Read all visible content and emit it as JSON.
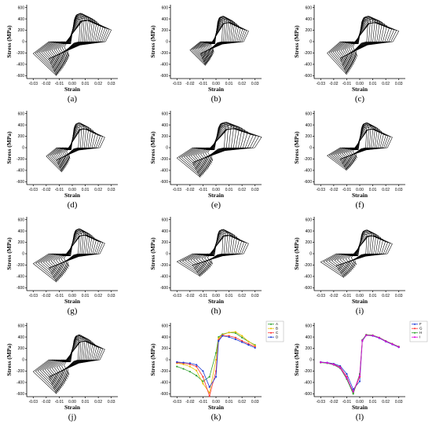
{
  "chart_data": [
    {
      "id": "a",
      "type": "line",
      "caption": "(a)",
      "xlabel": "Strain",
      "ylabel": "Stress (MPa)",
      "xlim": [
        -0.035,
        0.035
      ],
      "ylim": [
        -650,
        650
      ],
      "yticks": [
        "600",
        "400",
        "200",
        "0",
        "-200",
        "-400",
        "-600"
      ],
      "xticks": [
        "-0.03",
        "-0.02",
        "-0.01",
        "0.00",
        "0.01",
        "0.02",
        "0.03"
      ],
      "envelope": {
        "peak_pos": 500,
        "peak_neg": -600,
        "strain_min": -0.03,
        "strain_max": 0.03,
        "cycles": 16
      }
    },
    {
      "id": "b",
      "type": "line",
      "caption": "(b)",
      "xlabel": "Strain",
      "ylabel": "Stress (MPa)",
      "xlim": [
        -0.035,
        0.035
      ],
      "ylim": [
        -650,
        650
      ],
      "yticks": [
        "600",
        "400",
        "200",
        "0",
        "-200",
        "-400",
        "-600"
      ],
      "xticks": [
        "-0.03",
        "-0.02",
        "-0.01",
        "0.00",
        "0.01",
        "0.02",
        "0.03"
      ],
      "envelope": {
        "peak_pos": 450,
        "peak_neg": -420,
        "strain_min": -0.02,
        "strain_max": 0.025,
        "cycles": 14
      }
    },
    {
      "id": "c",
      "type": "line",
      "caption": "(c)",
      "xlabel": "Strain",
      "ylabel": "Stress (MPa)",
      "xlim": [
        -0.035,
        0.035
      ],
      "ylim": [
        -650,
        650
      ],
      "yticks": [
        "600",
        "400",
        "200",
        "0",
        "-200",
        "-400",
        "-600"
      ],
      "xticks": [
        "-0.03",
        "-0.02",
        "-0.01",
        "0.00",
        "0.01",
        "0.02",
        "0.03"
      ],
      "envelope": {
        "peak_pos": 450,
        "peak_neg": -580,
        "strain_min": -0.025,
        "strain_max": 0.03,
        "cycles": 14
      }
    },
    {
      "id": "d",
      "type": "line",
      "caption": "(d)",
      "xlabel": "Strain",
      "ylabel": "Stress (MPa)",
      "xlim": [
        -0.035,
        0.035
      ],
      "ylim": [
        -650,
        650
      ],
      "yticks": [
        "600",
        "400",
        "200",
        "0",
        "-200",
        "-400",
        "-600"
      ],
      "xticks": [
        "-0.03",
        "-0.02",
        "-0.01",
        "0.00",
        "0.01",
        "0.02",
        "0.03"
      ],
      "envelope": {
        "peak_pos": 440,
        "peak_neg": -430,
        "strain_min": -0.02,
        "strain_max": 0.025,
        "cycles": 12
      }
    },
    {
      "id": "e",
      "type": "line",
      "caption": "(e)",
      "xlabel": "Strain",
      "ylabel": "Stress (MPa)",
      "xlim": [
        -0.035,
        0.035
      ],
      "ylim": [
        -650,
        650
      ],
      "yticks": [
        "600",
        "400",
        "200",
        "0",
        "-200",
        "-400",
        "-600"
      ],
      "xticks": [
        "-0.03",
        "-0.02",
        "-0.01",
        "0.00",
        "0.01",
        "0.02",
        "0.03"
      ],
      "envelope": {
        "peak_pos": 450,
        "peak_neg": -520,
        "strain_min": -0.03,
        "strain_max": 0.035,
        "cycles": 14
      }
    },
    {
      "id": "f",
      "type": "line",
      "caption": "(f)",
      "xlabel": "Strain",
      "ylabel": "Stress (MPa)",
      "xlim": [
        -0.035,
        0.035
      ],
      "ylim": [
        -650,
        650
      ],
      "yticks": [
        "600",
        "400",
        "200",
        "0",
        "-200",
        "-400",
        "-600"
      ],
      "xticks": [
        "-0.03",
        "-0.02",
        "-0.01",
        "0.00",
        "0.01",
        "0.02",
        "0.03"
      ],
      "envelope": {
        "peak_pos": 440,
        "peak_neg": -400,
        "strain_min": -0.025,
        "strain_max": 0.025,
        "cycles": 13
      }
    },
    {
      "id": "g",
      "type": "line",
      "caption": "(g)",
      "xlabel": "Strain",
      "ylabel": "Stress (MPa)",
      "xlim": [
        -0.035,
        0.035
      ],
      "ylim": [
        -650,
        650
      ],
      "yticks": [
        "600",
        "400",
        "200",
        "0",
        "-200",
        "-400",
        "-600"
      ],
      "xticks": [
        "-0.03",
        "-0.02",
        "-0.01",
        "0.00",
        "0.01",
        "0.02",
        "0.03"
      ],
      "envelope": {
        "peak_pos": 440,
        "peak_neg": -500,
        "strain_min": -0.03,
        "strain_max": 0.025,
        "cycles": 13
      }
    },
    {
      "id": "h",
      "type": "line",
      "caption": "(h)",
      "xlabel": "Strain",
      "ylabel": "Stress (MPa)",
      "xlim": [
        -0.035,
        0.035
      ],
      "ylim": [
        -650,
        650
      ],
      "yticks": [
        "600",
        "400",
        "200",
        "0",
        "-200",
        "-400",
        "-600"
      ],
      "xticks": [
        "-0.03",
        "-0.02",
        "-0.01",
        "0.00",
        "0.01",
        "0.02",
        "0.03"
      ],
      "envelope": {
        "peak_pos": 430,
        "peak_neg": -400,
        "strain_min": -0.03,
        "strain_max": 0.025,
        "cycles": 12
      }
    },
    {
      "id": "i",
      "type": "line",
      "caption": "(i)",
      "xlabel": "Strain",
      "ylabel": "Stress (MPa)",
      "xlim": [
        -0.035,
        0.035
      ],
      "ylim": [
        -650,
        650
      ],
      "yticks": [
        "600",
        "400",
        "200",
        "0",
        "-200",
        "-400",
        "-600"
      ],
      "xticks": [
        "-0.03",
        "-0.02",
        "-0.01",
        "0.00",
        "0.01",
        "0.02",
        "0.03"
      ],
      "envelope": {
        "peak_pos": 420,
        "peak_neg": -420,
        "strain_min": -0.03,
        "strain_max": 0.025,
        "cycles": 12
      }
    },
    {
      "id": "j",
      "type": "line",
      "caption": "(j)",
      "xlabel": "Strain",
      "ylabel": "Stress (MPa)",
      "xlim": [
        -0.035,
        0.035
      ],
      "ylim": [
        -650,
        650
      ],
      "yticks": [
        "600",
        "400",
        "200",
        "0",
        "-200",
        "-400",
        "-600"
      ],
      "xticks": [
        "-0.03",
        "-0.02",
        "-0.01",
        "0.00",
        "0.01",
        "0.02",
        "0.03"
      ],
      "envelope": {
        "peak_pos": 440,
        "peak_neg": -600,
        "strain_min": -0.03,
        "strain_max": 0.025,
        "cycles": 14
      }
    },
    {
      "id": "k",
      "type": "line",
      "caption": "(k)",
      "xlabel": "Strain",
      "ylabel": "Stress (MPa)",
      "xlim": [
        -0.035,
        0.035
      ],
      "ylim": [
        -650,
        650
      ],
      "yticks": [
        "600",
        "400",
        "200",
        "0",
        "-200",
        "-400",
        "-600"
      ],
      "xticks": [
        "-0.03",
        "-0.02",
        "-0.01",
        "0.00",
        "0.01",
        "0.02",
        "0.03"
      ],
      "legend_position": "top-right",
      "series": [
        {
          "name": "A",
          "color": "#2ca02c",
          "x": [
            -0.03,
            -0.025,
            -0.02,
            -0.015,
            -0.01,
            -0.005,
            0.0,
            0.002,
            0.005,
            0.01,
            0.015,
            0.02,
            0.025,
            0.03
          ],
          "values": [
            -120,
            -160,
            -210,
            -280,
            -380,
            -300,
            120,
            400,
            450,
            480,
            470,
            390,
            320,
            260
          ]
        },
        {
          "name": "B",
          "color": "#e8c000",
          "x": [
            -0.03,
            -0.025,
            -0.02,
            -0.015,
            -0.01,
            -0.005,
            0.0,
            0.002,
            0.005,
            0.01,
            0.015,
            0.02,
            0.025,
            0.03
          ],
          "values": [
            -60,
            -80,
            -120,
            -190,
            -420,
            -580,
            0,
            380,
            440,
            480,
            490,
            420,
            320,
            250
          ]
        },
        {
          "name": "C",
          "color": "#ff3030",
          "x": [
            -0.03,
            -0.025,
            -0.02,
            -0.015,
            -0.01,
            -0.005,
            0.0,
            0.002,
            0.005,
            0.01,
            0.015,
            0.02,
            0.025,
            0.03
          ],
          "values": [
            -50,
            -60,
            -80,
            -120,
            -300,
            -640,
            -200,
            350,
            430,
            420,
            390,
            330,
            280,
            230
          ]
        },
        {
          "name": "D",
          "color": "#1f3fd8",
          "x": [
            -0.03,
            -0.025,
            -0.02,
            -0.015,
            -0.01,
            -0.005,
            0.0,
            0.002,
            0.005,
            0.01,
            0.015,
            0.02,
            0.025,
            0.03
          ],
          "values": [
            -40,
            -50,
            -60,
            -90,
            -200,
            -480,
            -300,
            330,
            420,
            400,
            360,
            310,
            260,
            210
          ]
        }
      ]
    },
    {
      "id": "l",
      "type": "line",
      "caption": "(l)",
      "xlabel": "Strain",
      "ylabel": "Stress (MPa)",
      "xlim": [
        -0.035,
        0.035
      ],
      "ylim": [
        -650,
        650
      ],
      "yticks": [
        "600",
        "400",
        "200",
        "0",
        "-200",
        "-400",
        "-600"
      ],
      "xticks": [
        "-0.03",
        "-0.02",
        "-0.01",
        "0.00",
        "0.01",
        "0.02",
        "0.03"
      ],
      "legend_position": "top-right",
      "series": [
        {
          "name": "F",
          "color": "#1f3fd8",
          "x": [
            -0.03,
            -0.025,
            -0.02,
            -0.015,
            -0.01,
            -0.005,
            0.0,
            0.002,
            0.005,
            0.01,
            0.015,
            0.02,
            0.025,
            0.03
          ],
          "values": [
            -40,
            -50,
            -70,
            -110,
            -250,
            -520,
            -380,
            330,
            430,
            420,
            380,
            320,
            270,
            220
          ]
        },
        {
          "name": "G",
          "color": "#ff3030",
          "x": [
            -0.03,
            -0.025,
            -0.02,
            -0.015,
            -0.01,
            -0.005,
            0.0,
            0.002,
            0.005,
            0.01,
            0.015,
            0.02,
            0.025,
            0.03
          ],
          "values": [
            -45,
            -55,
            -80,
            -130,
            -300,
            -580,
            -300,
            340,
            440,
            430,
            390,
            330,
            280,
            230
          ]
        },
        {
          "name": "H",
          "color": "#2ca02c",
          "x": [
            -0.03,
            -0.025,
            -0.02,
            -0.015,
            -0.01,
            -0.005,
            0.0,
            0.002,
            0.005,
            0.01,
            0.015,
            0.02,
            0.025,
            0.03
          ],
          "values": [
            -50,
            -60,
            -90,
            -150,
            -340,
            -600,
            -250,
            350,
            440,
            430,
            390,
            330,
            280,
            230
          ]
        },
        {
          "name": "I",
          "color": "#e000e0",
          "x": [
            -0.03,
            -0.025,
            -0.02,
            -0.015,
            -0.01,
            -0.005,
            0.0,
            0.002,
            0.005,
            0.01,
            0.015,
            0.02,
            0.025,
            0.03
          ],
          "values": [
            -45,
            -55,
            -85,
            -140,
            -320,
            -560,
            -280,
            340,
            430,
            425,
            385,
            325,
            275,
            225
          ]
        }
      ]
    }
  ]
}
